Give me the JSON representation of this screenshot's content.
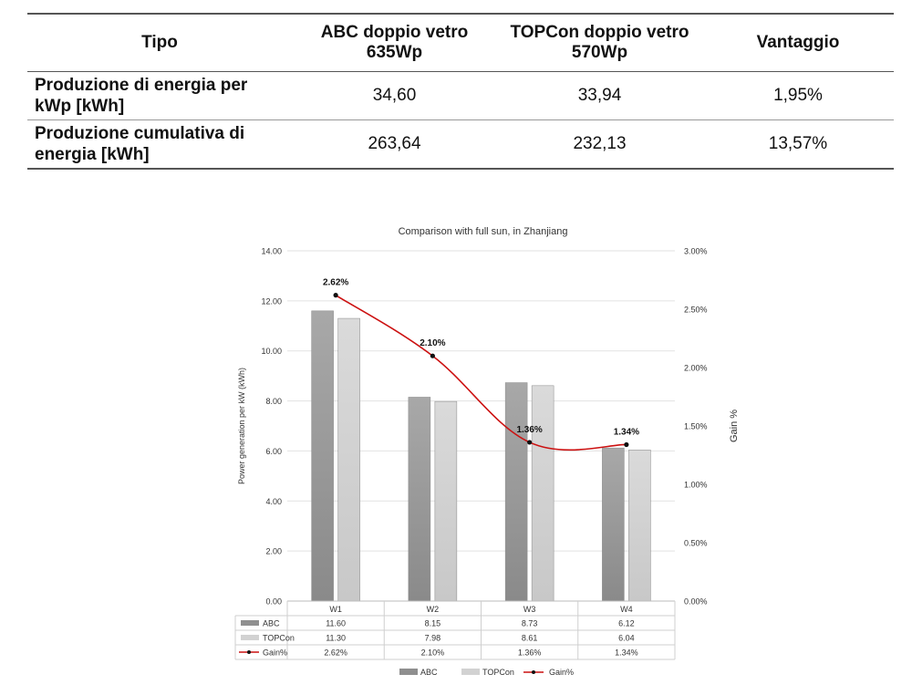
{
  "table": {
    "headers": [
      "Tipo",
      "ABC doppio vetro\n635Wp",
      "TOPCon doppio vetro\n570Wp",
      "Vantaggio"
    ],
    "rows": [
      {
        "label": "Produzione di energia per\nkWp [kWh]",
        "abc": "34,60",
        "topcon": "33,94",
        "gain": "1,95%"
      },
      {
        "label": "Produzione cumulativa di\nenergia [kWh]",
        "abc": "263,64",
        "topcon": "232,13",
        "gain": "13,57%"
      }
    ]
  },
  "chart_data": {
    "type": "bar",
    "title": "Comparison with full sun, in Zhanjiang",
    "ylabel": "Power generation per kW (kWh)",
    "y2label": "Gain %",
    "categories": [
      "W1",
      "W2",
      "W3",
      "W4"
    ],
    "ylim": [
      0,
      14
    ],
    "yticks": [
      "0.00",
      "2.00",
      "4.00",
      "6.00",
      "8.00",
      "10.00",
      "12.00",
      "14.00"
    ],
    "y2lim": [
      0,
      3
    ],
    "y2ticks": [
      "0.00%",
      "0.50%",
      "1.00%",
      "1.50%",
      "2.00%",
      "2.50%",
      "3.00%"
    ],
    "series": [
      {
        "name": "ABC",
        "kind": "bar",
        "color": "#9a9a9a",
        "values": [
          11.6,
          8.15,
          8.73,
          6.12
        ],
        "labels": [
          "11.60",
          "8.15",
          "8.73",
          "6.12"
        ]
      },
      {
        "name": "TOPCon",
        "kind": "bar",
        "color": "#d4d4d4",
        "values": [
          11.3,
          7.98,
          8.61,
          6.04
        ],
        "labels": [
          "11.30",
          "7.98",
          "8.61",
          "6.04"
        ]
      },
      {
        "name": "Gain%",
        "kind": "line",
        "axis": "right",
        "color": "#cc1111",
        "values": [
          2.62,
          2.1,
          1.36,
          1.34
        ],
        "labels": [
          "2.62%",
          "2.10%",
          "1.36%",
          "1.34%"
        ]
      }
    ],
    "legend": "bottom",
    "grid": true,
    "data_table": true
  }
}
